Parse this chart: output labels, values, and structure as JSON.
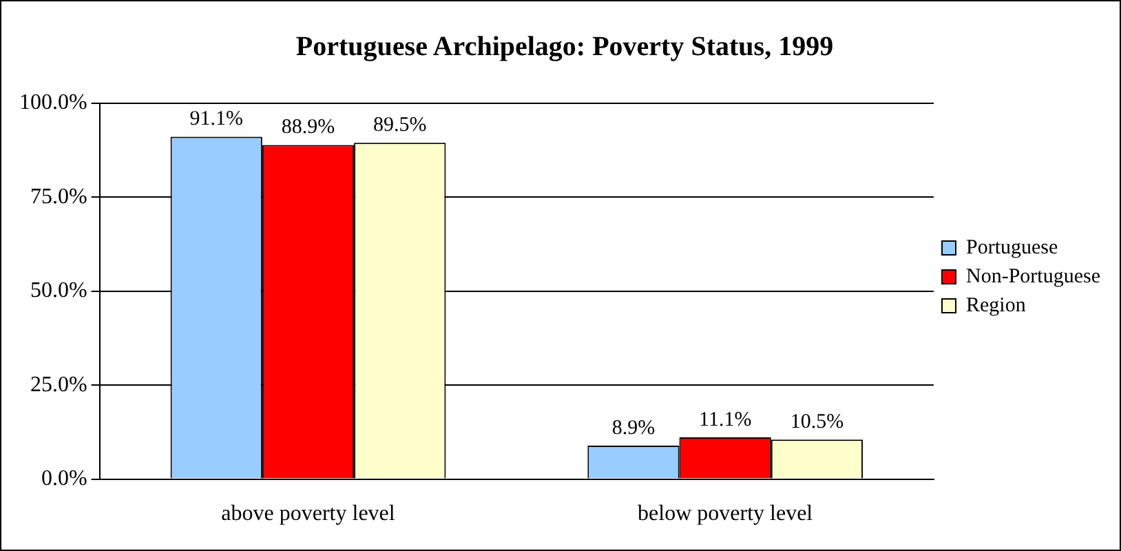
{
  "chart_data": {
    "type": "bar",
    "title": "Portuguese Archipelago: Poverty Status, 1999",
    "categories": [
      "above poverty level",
      "below poverty level"
    ],
    "series": [
      {
        "name": "Portuguese",
        "color": "#99ccff",
        "values": [
          91.1,
          8.9
        ],
        "value_labels": [
          "91.1%",
          "8.9%"
        ]
      },
      {
        "name": "Non-Portuguese",
        "color": "#ff0000",
        "values": [
          88.9,
          11.1
        ],
        "value_labels": [
          "88.9%",
          "11.1%"
        ]
      },
      {
        "name": "Region",
        "color": "#ffffcc",
        "values": [
          89.5,
          10.5
        ],
        "value_labels": [
          "89.5%",
          "10.5%"
        ]
      }
    ],
    "ylim": [
      0,
      100
    ],
    "yticks": [
      {
        "value": 0,
        "label": "0.0%"
      },
      {
        "value": 25,
        "label": "25.0%"
      },
      {
        "value": 50,
        "label": "50.0%"
      },
      {
        "value": 75,
        "label": "75.0%"
      },
      {
        "value": 100,
        "label": "100.0%"
      }
    ],
    "grid": "y",
    "legend": "right"
  }
}
